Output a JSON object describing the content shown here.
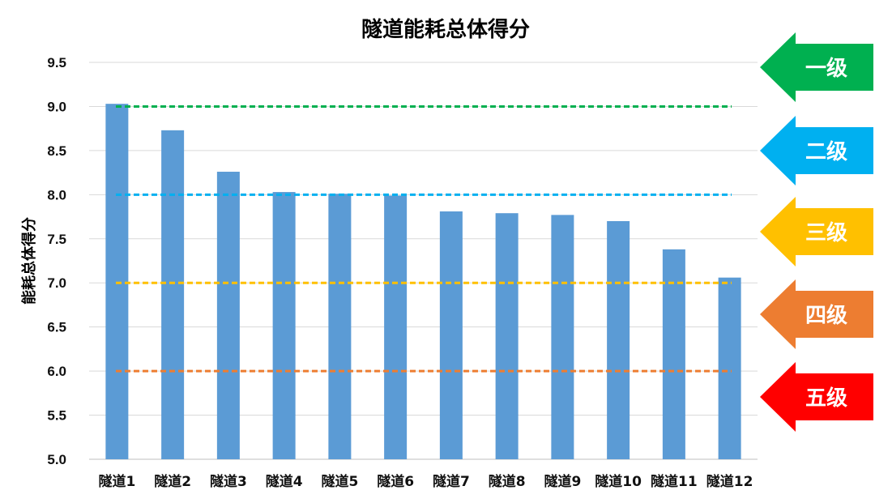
{
  "chart_data": {
    "type": "bar",
    "title": "隧道能耗总体得分",
    "ylabel": "能耗总体得分",
    "xlabel": "",
    "ylim": [
      5.0,
      9.5
    ],
    "yticks": [
      "5.0",
      "5.5",
      "6.0",
      "6.5",
      "7.0",
      "7.5",
      "8.0",
      "8.5",
      "9.0",
      "9.5"
    ],
    "grid": true,
    "categories": [
      "隧道1",
      "隧道2",
      "隧道3",
      "隧道4",
      "隧道5",
      "隧道6",
      "隧道7",
      "隧道8",
      "隧道9",
      "隧道10",
      "隧道11",
      "隧道12"
    ],
    "values": [
      9.03,
      8.73,
      8.26,
      8.03,
      8.01,
      7.99,
      7.81,
      7.79,
      7.77,
      7.7,
      7.38,
      7.06
    ],
    "bar_color": "#5B9BD5",
    "threshold_lines": [
      {
        "value": 9.0,
        "color": "#00B050"
      },
      {
        "value": 8.0,
        "color": "#00B0F0"
      },
      {
        "value": 7.0,
        "color": "#FFC000"
      },
      {
        "value": 6.0,
        "color": "#ED7D31"
      }
    ]
  },
  "level_legend": [
    {
      "label": "一级",
      "color": "#00B050"
    },
    {
      "label": "二级",
      "color": "#00B0F0"
    },
    {
      "label": "三级",
      "color": "#FFC000"
    },
    {
      "label": "四级",
      "color": "#ED7D31"
    },
    {
      "label": "五级",
      "color": "#FF0000"
    }
  ]
}
